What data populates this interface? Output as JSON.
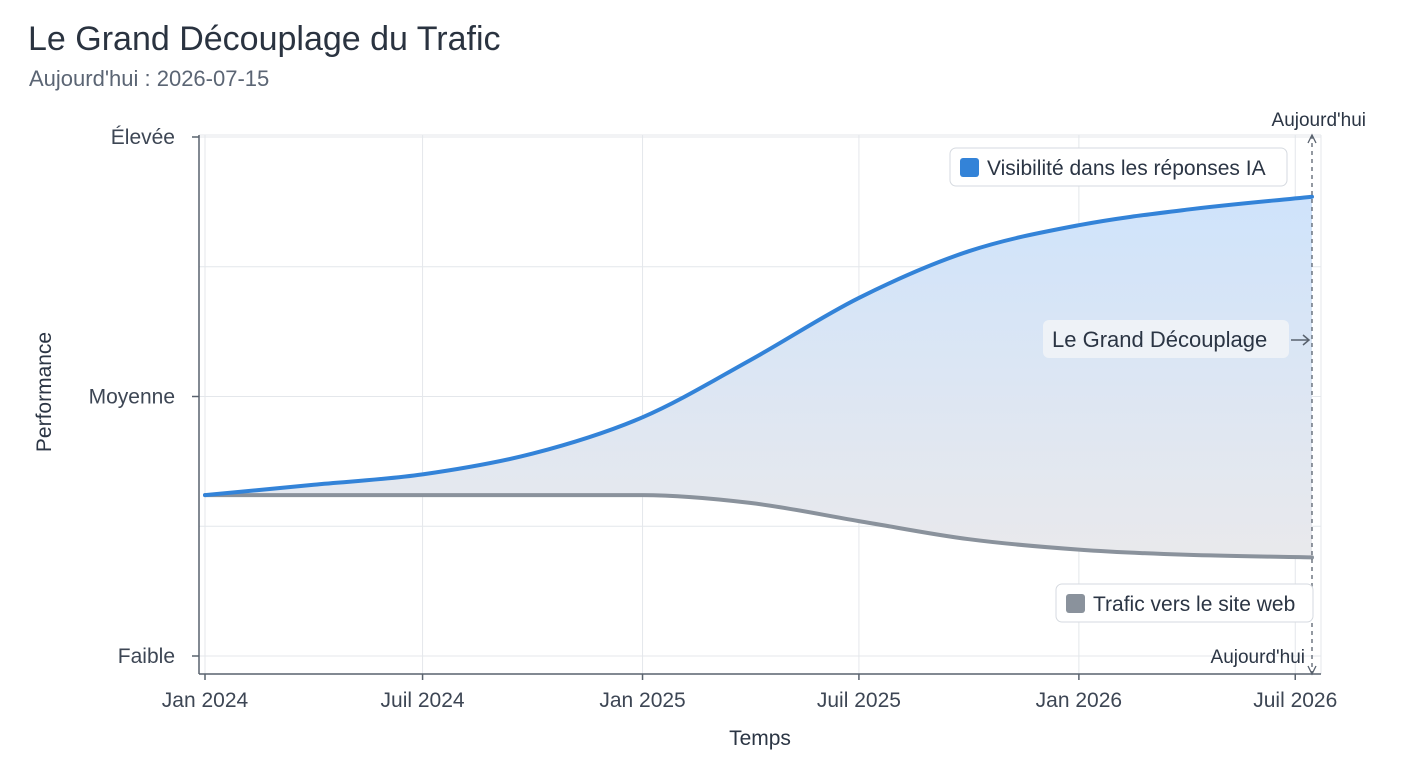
{
  "title": "Le Grand Découplage du Trafic",
  "subtitle": "Aujourd'hui : 2026-07-15",
  "colors": {
    "ai_line": "#3383d8",
    "traffic_line": "#8a929c",
    "fill_top": "#cfe3fb",
    "fill_bottom": "#e9e9ec",
    "grid": "#e4e7eb",
    "axis": "#59626e"
  },
  "chart_data": {
    "type": "line",
    "title": "Le Grand Découplage du Trafic",
    "xlabel": "Temps",
    "ylabel": "Performance",
    "x_type": "date",
    "xlim": [
      "2024-01-01",
      "2026-07-15"
    ],
    "ylim": [
      0,
      1
    ],
    "x_tick_labels": [
      "Jan 2024",
      "Juil 2024",
      "Jan 2025",
      "Juil 2025",
      "Jan 2026",
      "Juil 2026"
    ],
    "x_tick_dates": [
      "2024-01-01",
      "2024-07-01",
      "2025-01-01",
      "2025-07-01",
      "2026-01-01",
      "2026-07-01"
    ],
    "y_tick_labels": [
      "Faible",
      "Moyenne",
      "Élevée"
    ],
    "y_tick_values": [
      0,
      0.5,
      1
    ],
    "grid": true,
    "x": [
      "2024-01-01",
      "2024-04-01",
      "2024-07-01",
      "2024-10-01",
      "2025-01-01",
      "2025-04-01",
      "2025-07-01",
      "2025-10-01",
      "2026-01-01",
      "2026-04-01",
      "2026-07-15"
    ],
    "series": [
      {
        "name": "Visibilité dans les réponses IA",
        "color": "#3383d8",
        "values": [
          0.31,
          0.33,
          0.35,
          0.39,
          0.46,
          0.57,
          0.69,
          0.78,
          0.83,
          0.86,
          0.885
        ]
      },
      {
        "name": "Trafic vers le site web",
        "color": "#8a929c",
        "values": [
          0.31,
          0.31,
          0.31,
          0.31,
          0.31,
          0.295,
          0.26,
          0.225,
          0.205,
          0.195,
          0.19
        ]
      }
    ],
    "legend": [
      {
        "label": "Visibilité dans les réponses IA",
        "color": "#3383d8",
        "placement": "top-right"
      },
      {
        "label": "Trafic vers le site web",
        "color": "#8a929c",
        "placement": "bottom-right"
      }
    ],
    "annotations": {
      "gap_label": "Le Grand Découplage",
      "today_top": "Aujourd'hui",
      "today_bottom": "Aujourd'hui",
      "today_date": "2026-07-15"
    }
  }
}
